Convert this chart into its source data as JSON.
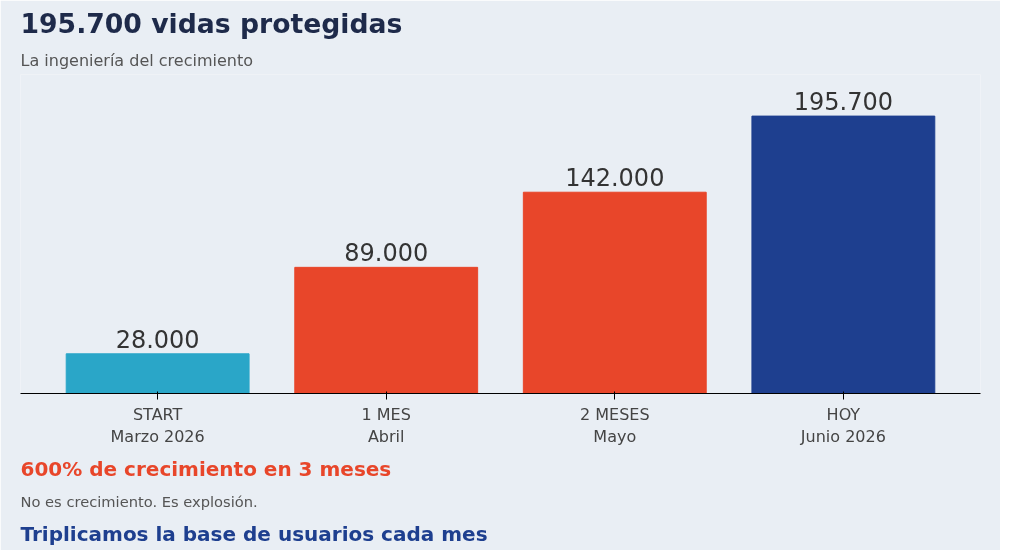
{
  "chart_data": {
    "type": "bar",
    "title": "195.700 vidas protegidas",
    "subtitle": "La ingeniería del crecimiento",
    "categories": [
      "START\nMarzo 2026",
      "1 MES\nAbril",
      "2 MESES\nMayo",
      "HOY\nJunio 2026"
    ],
    "values": [
      28000,
      89000,
      142000,
      195700
    ],
    "value_labels": [
      "28.000",
      "89.000",
      "142.000",
      "195.700"
    ],
    "colors": [
      "#2aa6c8",
      "#e8462a",
      "#e8462a",
      "#1e3f8f"
    ],
    "tick_labels": "x",
    "grid": false,
    "annotations": [
      "600% de crecimiento en 3 meses",
      "No es crecimiento. Es explosión.",
      "Triplicamos la base de usuarios cada mes"
    ]
  }
}
